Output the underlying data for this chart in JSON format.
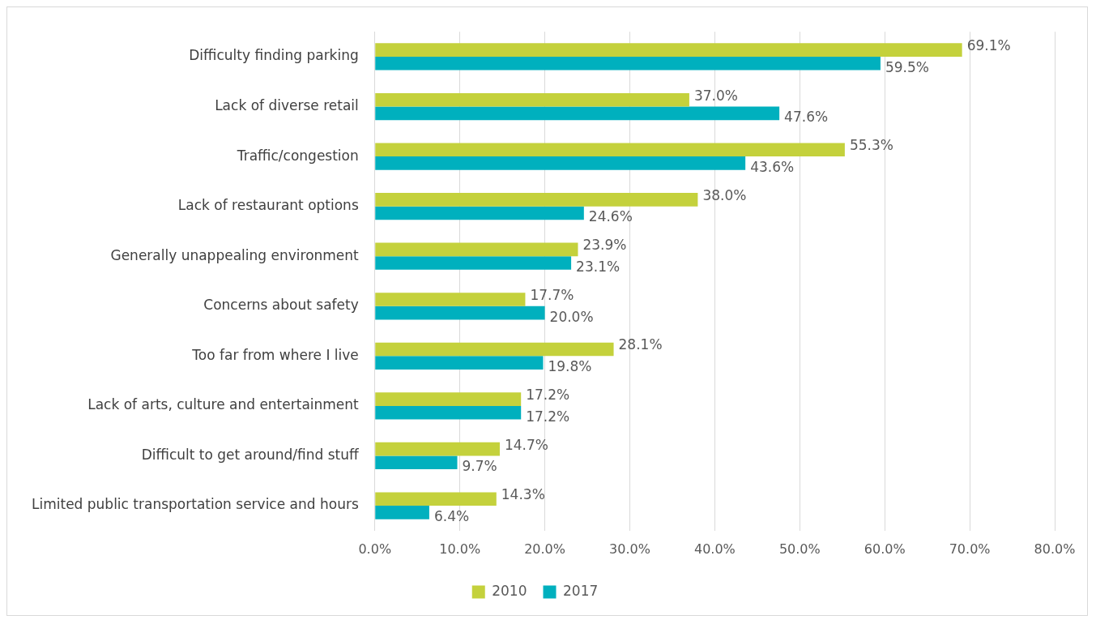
{
  "chart_data": {
    "type": "bar",
    "orientation": "horizontal",
    "categories": [
      "Difficulty finding parking",
      "Lack of diverse retail",
      "Traffic/congestion",
      "Lack of restaurant options",
      "Generally unappealing environment",
      "Concerns about safety",
      "Too far from where I live",
      "Lack of arts, culture and entertainment",
      "Difficult to get around/find stuff",
      "Limited public transportation service and hours"
    ],
    "series": [
      {
        "name": "2010",
        "color": "#c4d13c",
        "values": [
          69.1,
          37.0,
          55.3,
          38.0,
          23.9,
          17.7,
          28.1,
          17.2,
          14.7,
          14.3
        ],
        "value_labels": [
          "69.1%",
          "37.0%",
          "55.3%",
          "38.0%",
          "23.9%",
          "17.7%",
          "28.1%",
          "17.2%",
          "14.7%",
          "14.3%"
        ]
      },
      {
        "name": "2017",
        "color": "#00b0be",
        "values": [
          59.5,
          47.6,
          43.6,
          24.6,
          23.1,
          20.0,
          19.8,
          17.2,
          9.7,
          6.4
        ],
        "value_labels": [
          "59.5%",
          "47.6%",
          "43.6%",
          "24.6%",
          "23.1%",
          "20.0%",
          "19.8%",
          "17.2%",
          "9.7%",
          "6.4%"
        ]
      }
    ],
    "xlim": [
      0,
      80
    ],
    "xticks": [
      {
        "value": 0,
        "label": "0.0%"
      },
      {
        "value": 10,
        "label": "10.0%"
      },
      {
        "value": 20,
        "label": "20.0%"
      },
      {
        "value": 30,
        "label": "30.0%"
      },
      {
        "value": 40,
        "label": "40.0%"
      },
      {
        "value": 50,
        "label": "50.0%"
      },
      {
        "value": 60,
        "label": "60.0%"
      },
      {
        "value": 70,
        "label": "70.0%"
      },
      {
        "value": 80,
        "label": "80.0%"
      }
    ],
    "grid": "x",
    "legend": "bottom"
  }
}
